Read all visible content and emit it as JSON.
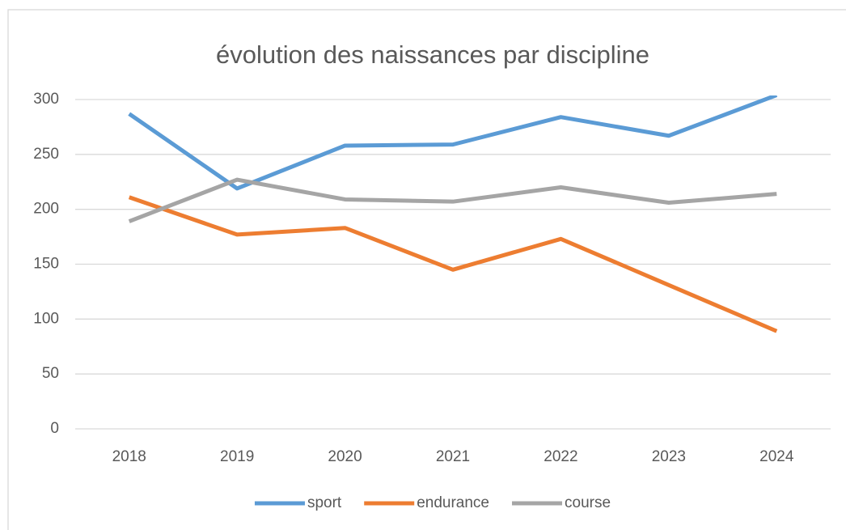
{
  "chart_data": {
    "type": "line",
    "title": "évolution des naissances par discipline",
    "categories": [
      "2018",
      "2019",
      "2020",
      "2021",
      "2022",
      "2023",
      "2024"
    ],
    "series": [
      {
        "name": "sport",
        "color": "#5b9bd5",
        "values": [
          287,
          219,
          258,
          259,
          284,
          267,
          304
        ]
      },
      {
        "name": "endurance",
        "color": "#ed7d31",
        "values": [
          211,
          177,
          183,
          145,
          173,
          131,
          89
        ]
      },
      {
        "name": "course",
        "color": "#a5a5a5",
        "values": [
          189,
          227,
          209,
          207,
          220,
          206,
          214
        ]
      }
    ],
    "ylim": [
      0,
      300
    ],
    "yticks": [
      0,
      50,
      100,
      150,
      200,
      250,
      300
    ],
    "grid": true,
    "legend": "bottom"
  }
}
